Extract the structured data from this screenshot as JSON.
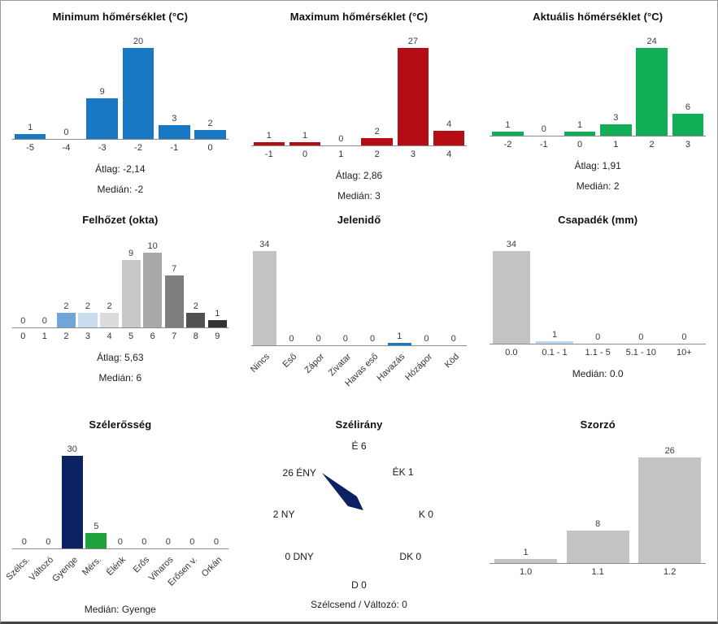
{
  "chart_data": [
    {
      "type": "bar",
      "title": "Minimum hőmérséklet (°C)",
      "categories": [
        "-5",
        "-4",
        "-3",
        "-2",
        "-1",
        "0"
      ],
      "values": [
        1,
        0,
        9,
        20,
        3,
        2
      ],
      "color": "#1878c4",
      "ylim": [
        0,
        20
      ],
      "grid": false,
      "stats": [
        "Átlag: -2,14",
        "Medián: -2"
      ]
    },
    {
      "type": "bar",
      "title": "Maximum hőmérséklet (°C)",
      "categories": [
        "-1",
        "0",
        "1",
        "2",
        "3",
        "4"
      ],
      "values": [
        1,
        1,
        0,
        2,
        27,
        4
      ],
      "color": "#b50d15",
      "ylim": [
        0,
        27
      ],
      "grid": false,
      "stats": [
        "Átlag: 2,86",
        "Medián: 3"
      ]
    },
    {
      "type": "bar",
      "title": "Aktuális hőmérséklet (°C)",
      "categories": [
        "-2",
        "-1",
        "0",
        "1",
        "2",
        "3"
      ],
      "values": [
        1,
        0,
        1,
        3,
        24,
        6
      ],
      "color": "#0fae57",
      "ylim": [
        0,
        24
      ],
      "grid": false,
      "stats": [
        "Átlag: 1,91",
        "Medián: 2"
      ]
    },
    {
      "type": "bar",
      "title": "Felhőzet (okta)",
      "categories": [
        "0",
        "1",
        "2",
        "3",
        "4",
        "5",
        "6",
        "7",
        "8",
        "9"
      ],
      "values": [
        0,
        0,
        2,
        2,
        2,
        9,
        10,
        7,
        2,
        1
      ],
      "colors": [
        "#c3c3c3",
        "#c3c3c3",
        "#6fa5d8",
        "#c9ddf0",
        "#dcdcdc",
        "#c8c8c8",
        "#a9a9a9",
        "#7e7e7e",
        "#515151",
        "#333333"
      ],
      "ylim": [
        0,
        10
      ],
      "grid": false,
      "stats": [
        "Átlag: 5,63",
        "Medián: 6"
      ]
    },
    {
      "type": "bar",
      "title": "Jelenidő",
      "categories": [
        "Nincs",
        "Eső",
        "Zápor",
        "Zivatar",
        "Havas eső",
        "Havazás",
        "Hózápor",
        "Köd"
      ],
      "values": [
        34,
        0,
        0,
        0,
        0,
        1,
        0,
        0
      ],
      "colors": [
        "#c3c3c3",
        "#c3c3c3",
        "#c3c3c3",
        "#c3c3c3",
        "#c3c3c3",
        "#1878c4",
        "#c3c3c3",
        "#c3c3c3"
      ],
      "ylim": [
        0,
        34
      ],
      "grid": false,
      "rotate_labels": true,
      "stats": []
    },
    {
      "type": "bar",
      "title": "Csapadék (mm)",
      "categories": [
        "0.0",
        "0.1 - 1",
        "1.1 - 5",
        "5.1 - 10",
        "10+"
      ],
      "values": [
        34,
        1,
        0,
        0,
        0
      ],
      "colors": [
        "#c3c3c3",
        "#bdd7ee",
        "#c3c3c3",
        "#c3c3c3",
        "#c3c3c3"
      ],
      "ylim": [
        0,
        34
      ],
      "grid": false,
      "stats": [
        "Medián: 0.0"
      ]
    },
    {
      "type": "bar",
      "title": "Szélerősség",
      "categories": [
        "Szélcs.",
        "Változó",
        "Gyenge",
        "Mérs.",
        "Élénk",
        "Erős",
        "Viharos",
        "Erősen v.",
        "Orkán"
      ],
      "values": [
        0,
        0,
        30,
        5,
        0,
        0,
        0,
        0,
        0
      ],
      "colors": [
        "#c3c3c3",
        "#c3c3c3",
        "#0b2161",
        "#1ea33c",
        "#c3c3c3",
        "#c3c3c3",
        "#c3c3c3",
        "#c3c3c3",
        "#c3c3c3"
      ],
      "ylim": [
        0,
        30
      ],
      "grid": false,
      "rotate_labels": true,
      "stats": [
        "Medián: Gyenge"
      ]
    },
    {
      "type": "compass",
      "title": "Szélirány",
      "needle_color": "#0b2161",
      "needle_points_to": "ÉNY",
      "directions": [
        {
          "name": "É",
          "value": 6,
          "label": "É 6"
        },
        {
          "name": "ÉK",
          "value": 1,
          "label": "ÉK 1"
        },
        {
          "name": "K",
          "value": 0,
          "label": "K 0"
        },
        {
          "name": "DK",
          "value": 0,
          "label": "DK 0"
        },
        {
          "name": "D",
          "value": 0,
          "label": "D 0"
        },
        {
          "name": "DNY",
          "value": 0,
          "label": "0 DNY"
        },
        {
          "name": "NY",
          "value": 2,
          "label": "2 NY"
        },
        {
          "name": "ÉNY",
          "value": 26,
          "label": "26 ÉNY"
        }
      ],
      "footer": "Szélcsend / Változó: 0"
    },
    {
      "type": "bar",
      "title": "Szorzó",
      "categories": [
        "1.0",
        "1.1",
        "1.2"
      ],
      "values": [
        1,
        8,
        26
      ],
      "color": "#c3c3c3",
      "ylim": [
        0,
        26
      ],
      "grid": false,
      "stats": []
    }
  ]
}
